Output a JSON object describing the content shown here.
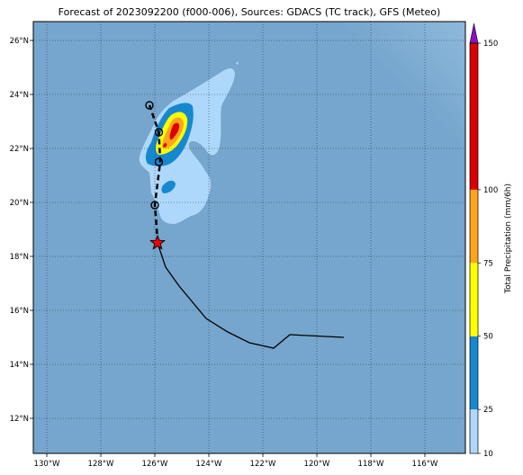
{
  "title": "Forecast of 2023092200 (f000-006), Sources: GDACS (TC track), GFS (Meteo)",
  "colorbar": {
    "label": "Total Precipitation (mm/6h)",
    "ticks": [
      "10",
      "25",
      "50",
      "75",
      "100",
      "150"
    ],
    "bands": [
      {
        "from": 10,
        "to": 25,
        "color": "#aed8fb"
      },
      {
        "from": 25,
        "to": 50,
        "color": "#1688d0"
      },
      {
        "from": 50,
        "to": 75,
        "color": "#ffff00"
      },
      {
        "from": 75,
        "to": 100,
        "color": "#ffa41d"
      },
      {
        "from": 100,
        "to": 150,
        "color": "#dd0000"
      },
      {
        "from": 150,
        "to": null,
        "color": "#8a10c8"
      }
    ]
  },
  "map": {
    "ocean_color": "#7aa9cf",
    "lon_range": [
      -130.5,
      -114.5
    ],
    "lat_range": [
      10.7,
      26.7
    ],
    "lon_ticks": [
      "130°W",
      "128°W",
      "126°W",
      "124°W",
      "122°W",
      "120°W",
      "118°W",
      "116°W"
    ],
    "lat_ticks": [
      "12°N",
      "14°N",
      "16°N",
      "18°N",
      "20°N",
      "22°N",
      "24°N",
      "26°N"
    ],
    "gridlines": "dotted"
  },
  "storm": {
    "current_position": {
      "lon": -125.9,
      "lat": 18.5
    },
    "past_track": [
      [
        -119.0,
        15.0
      ],
      [
        -121.0,
        15.1
      ],
      [
        -121.6,
        14.6
      ],
      [
        -122.5,
        14.8
      ],
      [
        -123.3,
        15.2
      ],
      [
        -124.1,
        15.7
      ],
      [
        -125.1,
        16.9
      ],
      [
        -125.6,
        17.6
      ],
      [
        -125.9,
        18.5
      ]
    ],
    "forecast_track": [
      [
        -125.9,
        18.5
      ],
      [
        -125.95,
        19.3
      ],
      [
        -126.0,
        19.9
      ],
      [
        -125.8,
        21.5
      ],
      [
        -125.85,
        22.6
      ],
      [
        -126.2,
        23.6
      ]
    ],
    "forecast_points": [
      [
        -126.0,
        19.9
      ],
      [
        -125.85,
        21.5
      ],
      [
        -125.85,
        22.6
      ],
      [
        -126.2,
        23.6
      ]
    ]
  }
}
